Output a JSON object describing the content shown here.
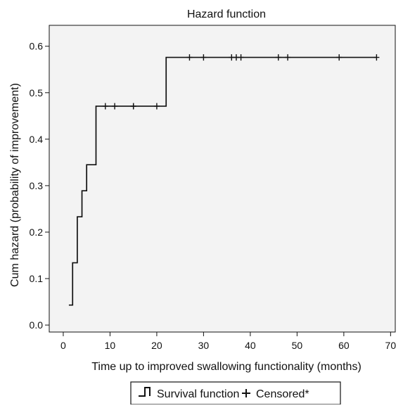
{
  "chart_data": {
    "type": "line",
    "title": "Hazard function",
    "xlabel": "Time up to improved swallowing functionality (months)",
    "ylabel": "Cum hazard (probability of improvement)",
    "xlim": [
      -3,
      71
    ],
    "ylim": [
      -0.015,
      0.645
    ],
    "x_ticks": [
      0,
      10,
      20,
      30,
      40,
      50,
      60,
      70
    ],
    "y_ticks": [
      0.0,
      0.1,
      0.2,
      0.3,
      0.4,
      0.5,
      0.6
    ],
    "x_tick_labels": [
      "0",
      "10",
      "20",
      "30",
      "40",
      "50",
      "60",
      "70"
    ],
    "y_tick_labels": [
      "0.0",
      "0.1",
      "0.2",
      "0.3",
      "0.4",
      "0.5",
      "0.6"
    ],
    "grid": false,
    "legend": {
      "placement": "bottom-center",
      "entries": [
        {
          "label": "Survival function",
          "symbol": "step"
        },
        {
          "label": "Censored*",
          "symbol": "plus"
        }
      ]
    },
    "colors": {
      "plot_background": "#f3f3f3",
      "line": "#111111"
    },
    "series": [
      {
        "name": "Survival function",
        "style": "step",
        "x": [
          1.2,
          2.0,
          3.0,
          4.0,
          5.0,
          7.0,
          22.0,
          67.0
        ],
        "y": [
          0.043,
          0.134,
          0.233,
          0.289,
          0.345,
          0.471,
          0.576,
          0.576
        ]
      },
      {
        "name": "Censored*",
        "style": "marker",
        "x": [
          9,
          11,
          15,
          15,
          20,
          27,
          30,
          36,
          37,
          38,
          46,
          48,
          59,
          67
        ],
        "y": [
          0.471,
          0.471,
          0.471,
          0.471,
          0.471,
          0.576,
          0.576,
          0.576,
          0.576,
          0.576,
          0.576,
          0.576,
          0.576,
          0.576
        ]
      }
    ]
  }
}
